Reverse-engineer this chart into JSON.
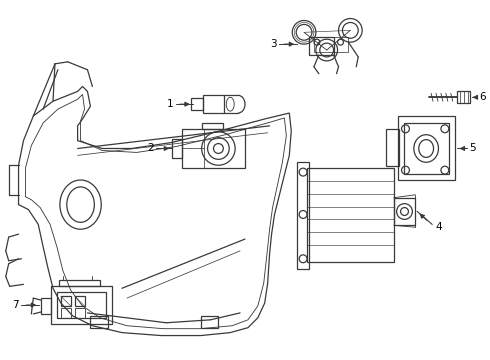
{
  "background_color": "#ffffff",
  "line_color": "#3a3a3a",
  "line_width": 0.9,
  "label_fontsize": 7.5,
  "fig_width": 4.9,
  "fig_height": 3.6,
  "dpi": 100
}
